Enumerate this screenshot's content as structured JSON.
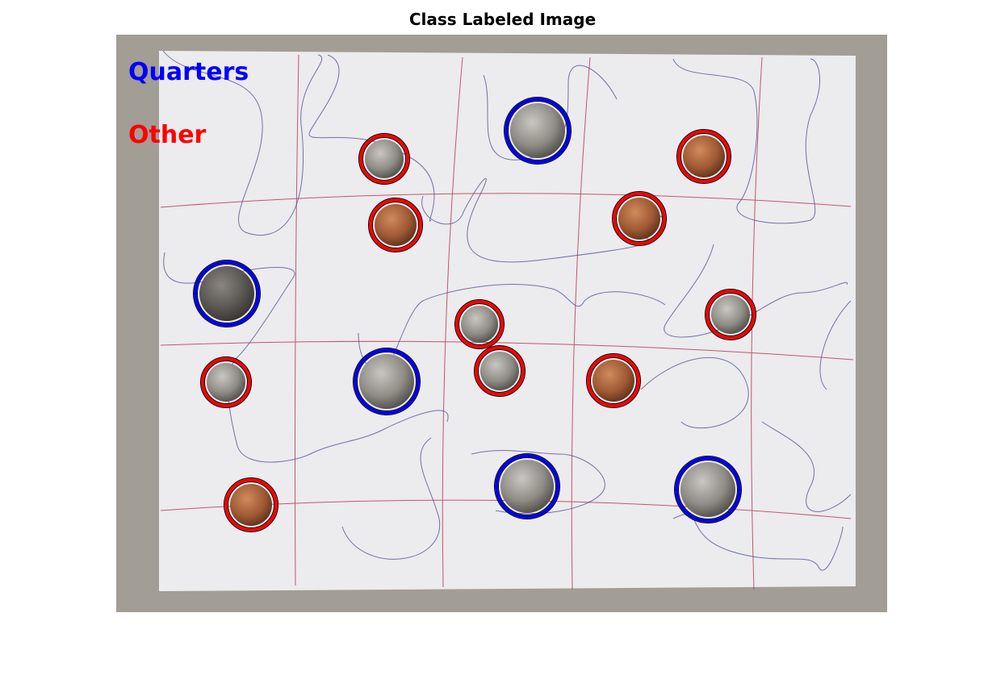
{
  "title": "Class Labeled Image",
  "legend": {
    "quarters": {
      "label": "Quarters",
      "color": "#0000ff"
    },
    "other": {
      "label": "Other",
      "color": "#ff0000"
    }
  },
  "coins": [
    {
      "class": "quarters",
      "tone": "silver"
    },
    {
      "class": "quarters",
      "tone": "dark-silver"
    },
    {
      "class": "quarters",
      "tone": "silver"
    },
    {
      "class": "quarters",
      "tone": "silver"
    },
    {
      "class": "quarters",
      "tone": "silver"
    },
    {
      "class": "other",
      "tone": "silver"
    },
    {
      "class": "other",
      "tone": "copper"
    },
    {
      "class": "other",
      "tone": "copper"
    },
    {
      "class": "other",
      "tone": "copper"
    },
    {
      "class": "other",
      "tone": "silver"
    },
    {
      "class": "other",
      "tone": "silver"
    },
    {
      "class": "other",
      "tone": "silver"
    },
    {
      "class": "other",
      "tone": "copper"
    },
    {
      "class": "other",
      "tone": "silver"
    },
    {
      "class": "other",
      "tone": "copper"
    }
  ]
}
